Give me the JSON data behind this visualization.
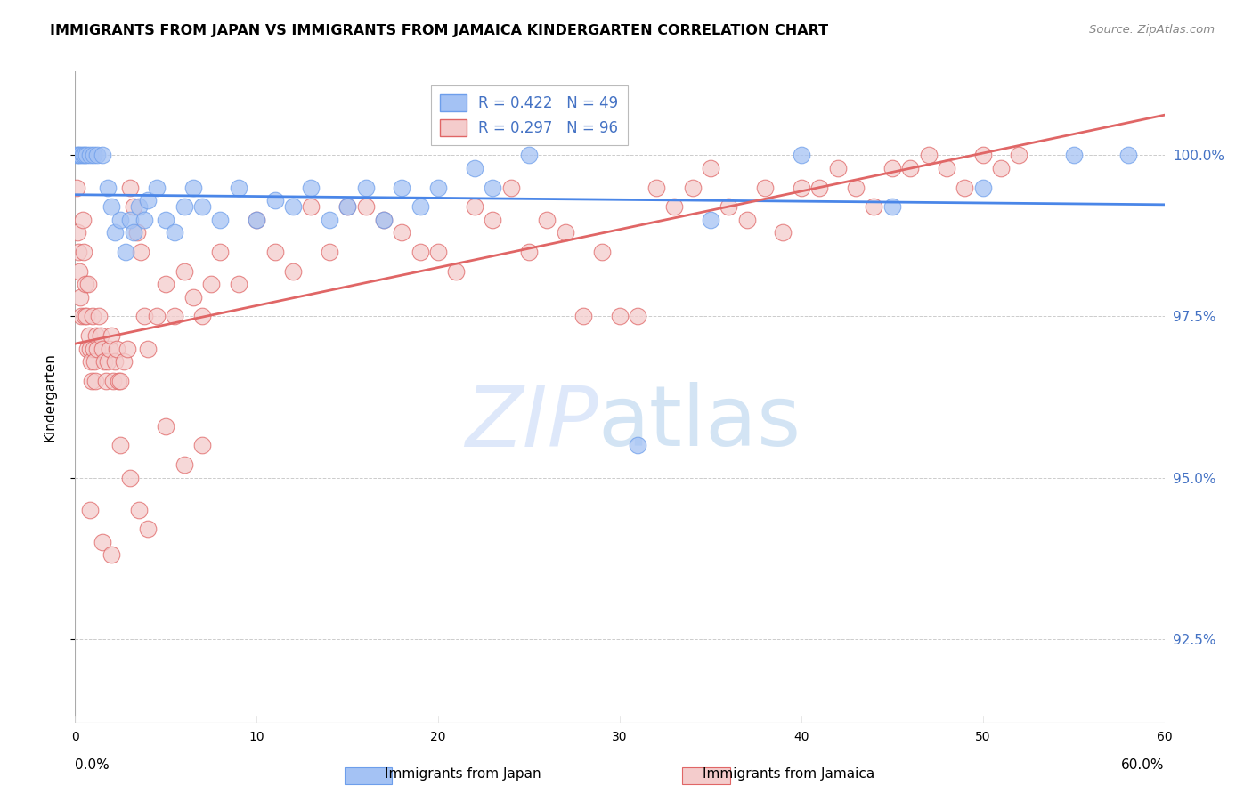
{
  "title": "IMMIGRANTS FROM JAPAN VS IMMIGRANTS FROM JAMAICA KINDERGARTEN CORRELATION CHART",
  "source": "Source: ZipAtlas.com",
  "ylabel": "Kindergarten",
  "yticks": [
    92.5,
    95.0,
    97.5,
    100.0
  ],
  "ytick_labels": [
    "92.5%",
    "95.0%",
    "97.5%",
    "100.0%"
  ],
  "xlim": [
    0.0,
    60.0
  ],
  "ylim": [
    91.2,
    101.3
  ],
  "legend_japan": "Immigrants from Japan",
  "legend_jamaica": "Immigrants from Jamaica",
  "R_japan": 0.422,
  "N_japan": 49,
  "R_jamaica": 0.297,
  "N_jamaica": 96,
  "japan_color": "#a4c2f4",
  "jamaica_color": "#f4cccc",
  "japan_edge_color": "#6d9eeb",
  "jamaica_edge_color": "#e06666",
  "japan_line_color": "#4a86e8",
  "jamaica_line_color": "#e06666",
  "japan_scatter_x": [
    0.1,
    0.2,
    0.3,
    0.4,
    0.5,
    0.6,
    0.8,
    1.0,
    1.2,
    1.5,
    1.8,
    2.0,
    2.2,
    2.5,
    2.8,
    3.0,
    3.2,
    3.5,
    3.8,
    4.0,
    4.5,
    5.0,
    5.5,
    6.0,
    6.5,
    7.0,
    8.0,
    9.0,
    10.0,
    11.0,
    12.0,
    13.0,
    14.0,
    15.0,
    16.0,
    17.0,
    18.0,
    19.0,
    20.0,
    22.0,
    23.0,
    25.0,
    31.0,
    35.0,
    40.0,
    45.0,
    50.0,
    55.0,
    58.0
  ],
  "japan_scatter_y": [
    100.0,
    100.0,
    100.0,
    100.0,
    100.0,
    100.0,
    100.0,
    100.0,
    100.0,
    100.0,
    99.5,
    99.2,
    98.8,
    99.0,
    98.5,
    99.0,
    98.8,
    99.2,
    99.0,
    99.3,
    99.5,
    99.0,
    98.8,
    99.2,
    99.5,
    99.2,
    99.0,
    99.5,
    99.0,
    99.3,
    99.2,
    99.5,
    99.0,
    99.2,
    99.5,
    99.0,
    99.5,
    99.2,
    99.5,
    99.8,
    99.5,
    100.0,
    95.5,
    99.0,
    100.0,
    99.2,
    99.5,
    100.0,
    100.0
  ],
  "jamaica_scatter_x": [
    0.1,
    0.15,
    0.2,
    0.25,
    0.3,
    0.35,
    0.4,
    0.45,
    0.5,
    0.55,
    0.6,
    0.65,
    0.7,
    0.75,
    0.8,
    0.85,
    0.9,
    0.95,
    1.0,
    1.05,
    1.1,
    1.15,
    1.2,
    1.3,
    1.4,
    1.5,
    1.6,
    1.7,
    1.8,
    1.9,
    2.0,
    2.1,
    2.2,
    2.3,
    2.4,
    2.5,
    2.7,
    2.9,
    3.0,
    3.2,
    3.4,
    3.6,
    3.8,
    4.0,
    4.5,
    5.0,
    5.5,
    6.0,
    6.5,
    7.0,
    7.5,
    8.0,
    9.0,
    10.0,
    11.0,
    12.0,
    13.0,
    14.0,
    15.0,
    16.0,
    17.0,
    18.0,
    19.0,
    20.0,
    21.0,
    22.0,
    23.0,
    24.0,
    25.0,
    26.0,
    27.0,
    28.0,
    29.0,
    30.0,
    31.0,
    32.0,
    33.0,
    34.0,
    35.0,
    36.0,
    37.0,
    38.0,
    39.0,
    40.0,
    41.0,
    42.0,
    43.0,
    44.0,
    45.0,
    46.0,
    47.0,
    48.0,
    49.0,
    50.0,
    51.0,
    52.0
  ],
  "jamaica_scatter_y": [
    99.5,
    98.8,
    98.5,
    98.2,
    97.8,
    97.5,
    99.0,
    98.5,
    97.5,
    98.0,
    97.5,
    97.0,
    98.0,
    97.2,
    97.0,
    96.8,
    96.5,
    97.5,
    97.0,
    96.8,
    96.5,
    97.2,
    97.0,
    97.5,
    97.2,
    97.0,
    96.8,
    96.5,
    96.8,
    97.0,
    97.2,
    96.5,
    96.8,
    97.0,
    96.5,
    96.5,
    96.8,
    97.0,
    99.5,
    99.2,
    98.8,
    98.5,
    97.5,
    97.0,
    97.5,
    98.0,
    97.5,
    98.2,
    97.8,
    97.5,
    98.0,
    98.5,
    98.0,
    99.0,
    98.5,
    98.2,
    99.2,
    98.5,
    99.2,
    99.2,
    99.0,
    98.8,
    98.5,
    98.5,
    98.2,
    99.2,
    99.0,
    99.5,
    98.5,
    99.0,
    98.8,
    97.5,
    98.5,
    97.5,
    97.5,
    99.5,
    99.2,
    99.5,
    99.8,
    99.2,
    99.0,
    99.5,
    98.8,
    99.5,
    99.5,
    99.8,
    99.5,
    99.2,
    99.8,
    99.8,
    100.0,
    99.8,
    99.5,
    100.0,
    99.8,
    100.0
  ],
  "low_jamaica_x": [
    0.8,
    1.5,
    2.0,
    2.5,
    3.0,
    3.5,
    4.0,
    5.0,
    6.0,
    7.0
  ],
  "low_jamaica_y": [
    94.5,
    94.0,
    93.8,
    95.5,
    95.0,
    94.5,
    94.2,
    95.8,
    95.2,
    95.5
  ]
}
